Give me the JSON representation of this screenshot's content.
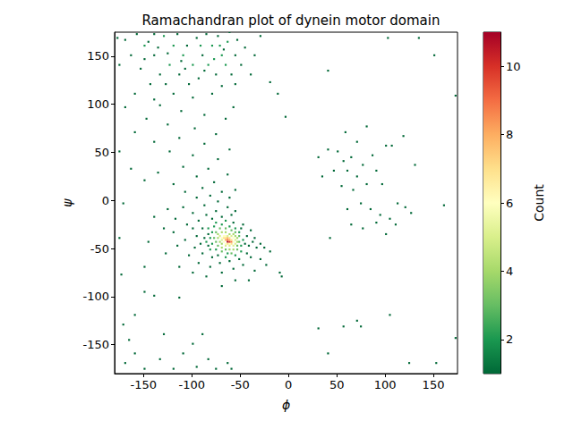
{
  "chart_data": {
    "type": "heatmap",
    "title": "Ramachandran plot of dynein motor domain",
    "xlabel": "ϕ",
    "ylabel": "ψ",
    "xlim": [
      -180,
      175
    ],
    "ylim": [
      -180,
      175
    ],
    "xticks": [
      -150,
      -100,
      -50,
      0,
      50,
      100,
      150
    ],
    "yticks": [
      -150,
      -100,
      -50,
      0,
      50,
      100,
      150
    ],
    "grid": false,
    "bin_width": 2,
    "colorbar": {
      "label": "Count",
      "range": [
        1,
        11
      ],
      "ticks": [
        2,
        4,
        6,
        8,
        10
      ]
    },
    "cells": [
      [
        -64,
        -44,
        11
      ],
      [
        -62,
        -44,
        10
      ],
      [
        -66,
        -42,
        8
      ],
      [
        -64,
        -42,
        9
      ],
      [
        -62,
        -42,
        8
      ],
      [
        -60,
        -44,
        9
      ],
      [
        -68,
        -40,
        7
      ],
      [
        -66,
        -40,
        7
      ],
      [
        -64,
        -40,
        8
      ],
      [
        -62,
        -40,
        7
      ],
      [
        -60,
        -42,
        7
      ],
      [
        -58,
        -44,
        6
      ],
      [
        -60,
        -46,
        7
      ],
      [
        -62,
        -46,
        6
      ],
      [
        -64,
        -46,
        7
      ],
      [
        -66,
        -46,
        6
      ],
      [
        -68,
        -44,
        6
      ],
      [
        -70,
        -42,
        5
      ],
      [
        -70,
        -40,
        6
      ],
      [
        -72,
        -38,
        5
      ],
      [
        -68,
        -38,
        6
      ],
      [
        -66,
        -38,
        6
      ],
      [
        -64,
        -38,
        5
      ],
      [
        -60,
        -38,
        5
      ],
      [
        -58,
        -40,
        6
      ],
      [
        -56,
        -42,
        5
      ],
      [
        -56,
        -46,
        5
      ],
      [
        -58,
        -48,
        5
      ],
      [
        -62,
        -48,
        5
      ],
      [
        -66,
        -48,
        5
      ],
      [
        -70,
        -46,
        4
      ],
      [
        -72,
        -44,
        4
      ],
      [
        -74,
        -40,
        4
      ],
      [
        -74,
        -36,
        4
      ],
      [
        -70,
        -34,
        4
      ],
      [
        -66,
        -34,
        4
      ],
      [
        -62,
        -36,
        4
      ],
      [
        -58,
        -36,
        4
      ],
      [
        -56,
        -38,
        4
      ],
      [
        -54,
        -40,
        4
      ],
      [
        -54,
        -44,
        4
      ],
      [
        -54,
        -48,
        3
      ],
      [
        -58,
        -52,
        4
      ],
      [
        -62,
        -52,
        4
      ],
      [
        -66,
        -52,
        3
      ],
      [
        -70,
        -50,
        4
      ],
      [
        -74,
        -48,
        3
      ],
      [
        -76,
        -44,
        3
      ],
      [
        -78,
        -40,
        3
      ],
      [
        -76,
        -34,
        3
      ],
      [
        -72,
        -30,
        3
      ],
      [
        -66,
        -30,
        3
      ],
      [
        -60,
        -32,
        3
      ],
      [
        -56,
        -34,
        3
      ],
      [
        -52,
        -38,
        3
      ],
      [
        -52,
        -44,
        3
      ],
      [
        -50,
        -48,
        2
      ],
      [
        -54,
        -52,
        3
      ],
      [
        -60,
        -56,
        3
      ],
      [
        -64,
        -56,
        2
      ],
      [
        -70,
        -54,
        3
      ],
      [
        -76,
        -52,
        2
      ],
      [
        -80,
        -46,
        2
      ],
      [
        -82,
        -40,
        2
      ],
      [
        -80,
        -34,
        2
      ],
      [
        -78,
        -28,
        2
      ],
      [
        -70,
        -26,
        2
      ],
      [
        -62,
        -28,
        2
      ],
      [
        -56,
        -30,
        2
      ],
      [
        -52,
        -34,
        2
      ],
      [
        -48,
        -42,
        2
      ],
      [
        -46,
        -46,
        1
      ],
      [
        -50,
        -54,
        2
      ],
      [
        -56,
        -58,
        2
      ],
      [
        -66,
        -60,
        2
      ],
      [
        -74,
        -58,
        1
      ],
      [
        -82,
        -52,
        2
      ],
      [
        -86,
        -44,
        2
      ],
      [
        -84,
        -36,
        1
      ],
      [
        -84,
        -30,
        2
      ],
      [
        -76,
        -24,
        2
      ],
      [
        -66,
        -22,
        2
      ],
      [
        -58,
        -24,
        1
      ],
      [
        -50,
        -30,
        1
      ],
      [
        -44,
        -38,
        1
      ],
      [
        -84,
        -48,
        1
      ],
      [
        -88,
        -40,
        1
      ],
      [
        -90,
        -30,
        1
      ],
      [
        -92,
        -46,
        1
      ],
      [
        -96,
        -38,
        1
      ],
      [
        -80,
        -20,
        1
      ],
      [
        -70,
        -18,
        1
      ],
      [
        -60,
        -16,
        1
      ],
      [
        -48,
        -26,
        1
      ],
      [
        -42,
        -48,
        1
      ],
      [
        -44,
        -56,
        1
      ],
      [
        -52,
        -62,
        1
      ],
      [
        -62,
        -64,
        1
      ],
      [
        -72,
        -66,
        1
      ],
      [
        -80,
        -60,
        1
      ],
      [
        -90,
        -56,
        1
      ],
      [
        -98,
        -50,
        1
      ],
      [
        -100,
        -30,
        1
      ],
      [
        -94,
        -22,
        1
      ],
      [
        -86,
        -16,
        1
      ],
      [
        -76,
        -12,
        1
      ],
      [
        -64,
        -8,
        1
      ],
      [
        -56,
        -12,
        1
      ],
      [
        -40,
        -32,
        1
      ],
      [
        -38,
        -44,
        1
      ],
      [
        -36,
        -40,
        1
      ],
      [
        -34,
        -50,
        1
      ],
      [
        -40,
        -60,
        1
      ],
      [
        -48,
        -68,
        1
      ],
      [
        -58,
        -72,
        1
      ],
      [
        -70,
        -76,
        1
      ],
      [
        -82,
        -70,
        1
      ],
      [
        -94,
        -66,
        1
      ],
      [
        -104,
        -58,
        1
      ],
      [
        -108,
        -42,
        1
      ],
      [
        -106,
        -26,
        1
      ],
      [
        -100,
        -14,
        1
      ],
      [
        -88,
        -6,
        1
      ],
      [
        -74,
        -2,
        1
      ],
      [
        -62,
        2,
        1
      ],
      [
        -82,
        4,
        1
      ],
      [
        -96,
        2,
        1
      ],
      [
        -110,
        -8,
        1
      ],
      [
        -118,
        -20,
        1
      ],
      [
        -120,
        -34,
        1
      ],
      [
        -116,
        -48,
        1
      ],
      [
        -30,
        -46,
        1
      ],
      [
        -26,
        -50,
        1
      ],
      [
        -30,
        -62,
        1
      ],
      [
        -20,
        -54,
        1
      ],
      [
        -24,
        -68,
        1
      ],
      [
        -36,
        -74,
        1
      ],
      [
        -10,
        -76,
        1
      ],
      [
        -42,
        -84,
        1
      ],
      [
        -56,
        -84,
        1
      ],
      [
        -70,
        -90,
        1
      ],
      [
        -86,
        -80,
        1
      ],
      [
        -100,
        -76,
        1
      ],
      [
        -114,
        -70,
        1
      ],
      [
        -128,
        -56,
        1
      ],
      [
        -130,
        -30,
        1
      ],
      [
        -126,
        -10,
        1
      ],
      [
        -140,
        -18,
        1
      ],
      [
        -146,
        -44,
        1
      ],
      [
        -150,
        -70,
        1
      ],
      [
        -150,
        -96,
        1
      ],
      [
        -70,
        8,
        1
      ],
      [
        -90,
        12,
        1
      ],
      [
        -108,
        8,
        1
      ],
      [
        -56,
        10,
        1
      ],
      [
        -78,
        18,
        1
      ],
      [
        -96,
        24,
        1
      ],
      [
        -120,
        16,
        1
      ],
      [
        -64,
        26,
        1
      ],
      [
        -84,
        32,
        1
      ],
      [
        -110,
        34,
        1
      ],
      [
        -136,
        28,
        1
      ],
      [
        -74,
        42,
        1
      ],
      [
        -100,
        46,
        1
      ],
      [
        -124,
        50,
        1
      ],
      [
        -62,
        52,
        1
      ],
      [
        -88,
        58,
        1
      ],
      [
        -114,
        64,
        1
      ],
      [
        -140,
        60,
        1
      ],
      [
        -76,
        68,
        1
      ],
      [
        -98,
        74,
        1
      ],
      [
        -126,
        78,
        1
      ],
      [
        -66,
        84,
        1
      ],
      [
        -88,
        88,
        1
      ],
      [
        -112,
        92,
        1
      ],
      [
        -148,
        84,
        1
      ],
      [
        -160,
        70,
        1
      ],
      [
        -170,
        96,
        1
      ],
      [
        -134,
        98,
        1
      ],
      [
        -58,
        96,
        1
      ],
      [
        -150,
        20,
        1
      ],
      [
        -164,
        32,
        1
      ],
      [
        -176,
        50,
        1
      ],
      [
        -150,
        160,
        2
      ],
      [
        -140,
        150,
        1
      ],
      [
        -130,
        170,
        2
      ],
      [
        -120,
        160,
        2
      ],
      [
        -110,
        150,
        2
      ],
      [
        -100,
        140,
        2
      ],
      [
        -90,
        150,
        1
      ],
      [
        -80,
        160,
        2
      ],
      [
        -70,
        150,
        2
      ],
      [
        -66,
        140,
        2
      ],
      [
        -76,
        130,
        1
      ],
      [
        -60,
        130,
        1
      ],
      [
        -74,
        170,
        1
      ],
      [
        -64,
        164,
        2
      ],
      [
        -56,
        150,
        1
      ],
      [
        -50,
        140,
        1
      ],
      [
        -84,
        140,
        2
      ],
      [
        -94,
        126,
        1
      ],
      [
        -104,
        120,
        1
      ],
      [
        -114,
        130,
        1
      ],
      [
        -124,
        140,
        2
      ],
      [
        -134,
        130,
        1
      ],
      [
        -144,
        120,
        1
      ],
      [
        -154,
        136,
        1
      ],
      [
        -164,
        150,
        1
      ],
      [
        -170,
        166,
        1
      ],
      [
        -176,
        140,
        1
      ],
      [
        -160,
        110,
        1
      ],
      [
        -140,
        104,
        1
      ],
      [
        -120,
        110,
        1
      ],
      [
        -100,
        106,
        1
      ],
      [
        -80,
        110,
        1
      ],
      [
        -70,
        118,
        1
      ],
      [
        -56,
        120,
        1
      ],
      [
        -116,
        172,
        1
      ],
      [
        -96,
        168,
        1
      ],
      [
        -86,
        172,
        1
      ],
      [
        -62,
        174,
        1
      ],
      [
        -140,
        172,
        1
      ],
      [
        -158,
        172,
        1
      ],
      [
        -146,
        164,
        1
      ],
      [
        -126,
        152,
        1
      ],
      [
        -106,
        160,
        1
      ],
      [
        -92,
        160,
        2
      ],
      [
        -72,
        160,
        2
      ],
      [
        -68,
        156,
        1
      ],
      [
        -78,
        146,
        2
      ],
      [
        -88,
        134,
        1
      ],
      [
        -108,
        136,
        1
      ],
      [
        -128,
        120,
        1
      ],
      [
        -150,
        146,
        1
      ],
      [
        -136,
        158,
        1
      ],
      [
        -112,
        144,
        1
      ],
      [
        -54,
        166,
        1
      ],
      [
        -46,
        158,
        1
      ],
      [
        -40,
        130,
        1
      ],
      [
        -20,
        122,
        1
      ],
      [
        -12,
        110,
        1
      ],
      [
        -4,
        86,
        1
      ],
      [
        -30,
        170,
        1
      ],
      [
        -36,
        150,
        1
      ],
      [
        -170,
        -170,
        1
      ],
      [
        -160,
        -160,
        1
      ],
      [
        -150,
        -176,
        1
      ],
      [
        -134,
        -166,
        1
      ],
      [
        -120,
        -176,
        1
      ],
      [
        -110,
        -160,
        1
      ],
      [
        -96,
        -174,
        1
      ],
      [
        -84,
        -166,
        1
      ],
      [
        -76,
        -176,
        1
      ],
      [
        -64,
        -170,
        1
      ],
      [
        -100,
        -150,
        1
      ],
      [
        -130,
        -140,
        1
      ],
      [
        -166,
        -146,
        1
      ],
      [
        -172,
        -130,
        1
      ],
      [
        -160,
        -120,
        1
      ],
      [
        -90,
        -140,
        1
      ],
      [
        -60,
        -176,
        1
      ],
      [
        50,
        50,
        1
      ],
      [
        56,
        40,
        1
      ],
      [
        60,
        30,
        1
      ],
      [
        64,
        44,
        1
      ],
      [
        70,
        24,
        1
      ],
      [
        76,
        36,
        1
      ],
      [
        80,
        16,
        1
      ],
      [
        66,
        10,
        1
      ],
      [
        46,
        30,
        1
      ],
      [
        40,
        52,
        1
      ],
      [
        86,
        46,
        1
      ],
      [
        90,
        30,
        1
      ],
      [
        96,
        16,
        1
      ],
      [
        74,
        -4,
        1
      ],
      [
        84,
        -10,
        1
      ],
      [
        94,
        -16,
        1
      ],
      [
        104,
        -20,
        1
      ],
      [
        110,
        -26,
        1
      ],
      [
        120,
        -8,
        1
      ],
      [
        60,
        -10,
        1
      ],
      [
        54,
        14,
        1
      ],
      [
        70,
        60,
        1
      ],
      [
        58,
        70,
        1
      ],
      [
        80,
        76,
        1
      ],
      [
        100,
        56,
        1
      ],
      [
        106,
        56,
        1
      ],
      [
        90,
        -24,
        1
      ],
      [
        112,
        -4,
        1
      ],
      [
        126,
        -14,
        1
      ],
      [
        64,
        -26,
        1
      ],
      [
        76,
        -30,
        1
      ],
      [
        100,
        -36,
        1
      ],
      [
        42,
        -40,
        1
      ],
      [
        30,
        44,
        1
      ],
      [
        34,
        24,
        1
      ],
      [
        130,
        36,
        1
      ],
      [
        118,
        66,
        1
      ],
      [
        70,
        -126,
        1
      ],
      [
        74,
        -132,
        1
      ],
      [
        56,
        -132,
        1
      ],
      [
        104,
        -120,
        1
      ],
      [
        124,
        -170,
        1
      ],
      [
        30,
        -134,
        1
      ],
      [
        40,
        -160,
        1
      ],
      [
        152,
        -170,
        1
      ],
      [
        172,
        -144,
        1
      ],
      [
        102,
        168,
        1
      ],
      [
        134,
        168,
        1
      ],
      [
        150,
        150,
        1
      ],
      [
        172,
        108,
        1
      ],
      [
        40,
        134,
        1
      ],
      [
        -8,
        -80,
        1
      ],
      [
        -174,
        -78,
        1
      ],
      [
        -176,
        -40,
        1
      ],
      [
        -178,
        168,
        1
      ],
      [
        -172,
        -4,
        1
      ],
      [
        160,
        -6,
        1
      ],
      [
        -114,
        -102,
        1
      ],
      [
        -140,
        -100,
        1
      ]
    ]
  }
}
